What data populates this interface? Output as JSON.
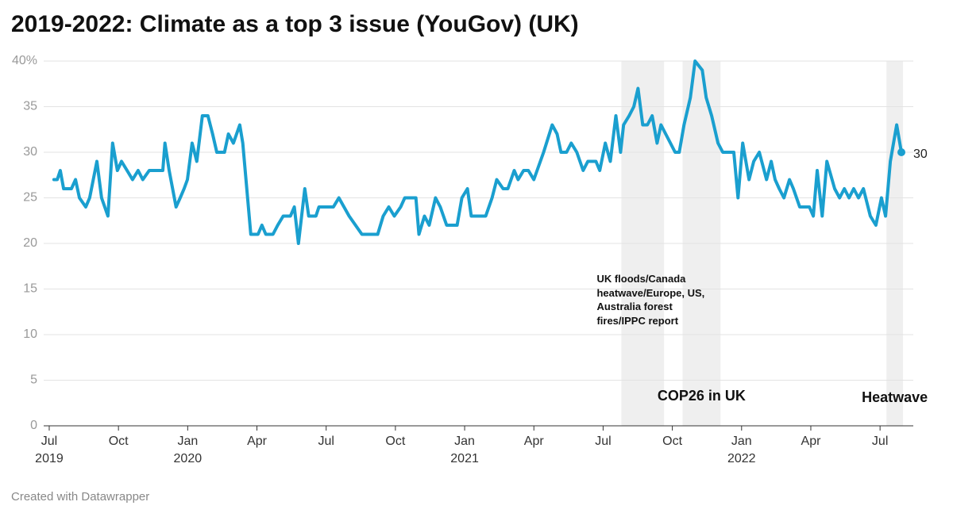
{
  "chart_data": {
    "type": "line",
    "title": "2019-2022: Climate as a top 3 issue (YouGov) (UK)",
    "footer": "Created with Datawrapper",
    "xlim": [
      2019.48,
      2022.62
    ],
    "xticks": [
      {
        "value": 2019.5,
        "label": "Jul"
      },
      {
        "value": 2019.75,
        "label": "Oct"
      },
      {
        "value": 2020.0,
        "label": "Jan"
      },
      {
        "value": 2020.25,
        "label": "Apr"
      },
      {
        "value": 2020.5,
        "label": "Jul"
      },
      {
        "value": 2020.75,
        "label": "Oct"
      },
      {
        "value": 2021.0,
        "label": "Jan"
      },
      {
        "value": 2021.25,
        "label": "Apr"
      },
      {
        "value": 2021.5,
        "label": "Jul"
      },
      {
        "value": 2021.75,
        "label": "Oct"
      },
      {
        "value": 2022.0,
        "label": "Jan"
      },
      {
        "value": 2022.25,
        "label": "Apr"
      },
      {
        "value": 2022.5,
        "label": "Jul"
      }
    ],
    "year_ticks": [
      {
        "value": 2019.5,
        "label": "2019"
      },
      {
        "value": 2020.0,
        "label": "2020"
      },
      {
        "value": 2021.0,
        "label": "2021"
      },
      {
        "value": 2022.0,
        "label": "2022"
      }
    ],
    "ylim": [
      0,
      40
    ],
    "yticks": [
      0,
      5,
      10,
      15,
      20,
      25,
      30,
      35,
      {
        "value": 40,
        "label": "40%"
      }
    ],
    "grid": true,
    "highlights": [
      {
        "start": 2021.566,
        "end": 2021.72,
        "label": "UK floods/Canada heatwave/Europe, US, Australia forest fires/IPPC report"
      },
      {
        "start": 2021.787,
        "end": 2021.924,
        "label": "COP26 in UK"
      },
      {
        "start": 2022.523,
        "end": 2022.583,
        "label": "Heatwave"
      }
    ],
    "x": [
      2019.517,
      2019.529,
      2019.54,
      2019.552,
      2019.58,
      2019.595,
      2019.609,
      2019.632,
      2019.646,
      2019.672,
      2019.689,
      2019.712,
      2019.729,
      2019.746,
      2019.761,
      2019.781,
      2019.801,
      2019.821,
      2019.838,
      2019.861,
      2019.91,
      2019.918,
      2019.933,
      2019.958,
      2019.973,
      2019.987,
      2019.999,
      2020.016,
      2020.033,
      2020.053,
      2020.073,
      2020.09,
      2020.105,
      2020.133,
      2020.147,
      2020.165,
      2020.188,
      2020.199,
      2020.228,
      2020.254,
      2020.268,
      2020.282,
      2020.308,
      2020.325,
      2020.345,
      2020.371,
      2020.385,
      2020.4,
      2020.423,
      2020.437,
      2020.463,
      2020.474,
      2020.526,
      2020.546,
      2020.583,
      2020.629,
      2020.686,
      2020.706,
      2020.726,
      2020.746,
      2020.769,
      2020.784,
      2020.824,
      2020.835,
      2020.855,
      2020.872,
      2020.895,
      2020.912,
      2020.935,
      2020.973,
      2020.99,
      2021.01,
      2021.024,
      2021.076,
      2021.099,
      2021.116,
      2021.139,
      2021.156,
      2021.179,
      2021.193,
      2021.213,
      2021.23,
      2021.25,
      2021.285,
      2021.316,
      2021.334,
      2021.348,
      2021.368,
      2021.385,
      2021.405,
      2021.428,
      2021.445,
      2021.474,
      2021.488,
      2021.508,
      2021.526,
      2021.546,
      2021.563,
      2021.574,
      2021.594,
      2021.611,
      2021.626,
      2021.643,
      2021.66,
      2021.677,
      2021.695,
      2021.709,
      2021.743,
      2021.76,
      2021.775,
      2021.792,
      2021.815,
      2021.832,
      2021.858,
      2021.872,
      2021.892,
      2021.915,
      2021.932,
      2021.958,
      2021.972,
      2021.987,
      2022.004,
      2022.027,
      2022.044,
      2022.064,
      2022.09,
      2022.107,
      2022.121,
      2022.136,
      2022.153,
      2022.173,
      2022.187,
      2022.21,
      2022.23,
      2022.245,
      2022.259,
      2022.273,
      2022.291,
      2022.308,
      2022.336,
      2022.354,
      2022.371,
      2022.388,
      2022.405,
      2022.422,
      2022.44,
      2022.465,
      2022.485,
      2022.505,
      2022.52,
      2022.537,
      2022.56,
      2022.577
    ],
    "series": [
      {
        "color": "#1a9fcf",
        "values": [
          27,
          27,
          28,
          26,
          26,
          27,
          25,
          24,
          25,
          29,
          25,
          23,
          31,
          28,
          29,
          28,
          27,
          28,
          27,
          28,
          28,
          31,
          28,
          24,
          25,
          26,
          27,
          31,
          29,
          34,
          34,
          32,
          30,
          30,
          32,
          31,
          33,
          31,
          21,
          21,
          22,
          21,
          21,
          22,
          23,
          23,
          24,
          20,
          26,
          23,
          23,
          24,
          24,
          25,
          23,
          21,
          21,
          23,
          24,
          23,
          24,
          25,
          25,
          21,
          23,
          22,
          25,
          24,
          22,
          22,
          25,
          26,
          23,
          23,
          25,
          27,
          26,
          26,
          28,
          27,
          28,
          28,
          27,
          30,
          33,
          32,
          30,
          30,
          31,
          30,
          28,
          29,
          29,
          28,
          31,
          29,
          34,
          30,
          33,
          34,
          35,
          37,
          33,
          33,
          34,
          31,
          33,
          31,
          30,
          30,
          33,
          36,
          40,
          39,
          36,
          34,
          31,
          30,
          30,
          30,
          25,
          31,
          27,
          29,
          30,
          27,
          29,
          27,
          26,
          25,
          27,
          26,
          24,
          24,
          24,
          23,
          28,
          23,
          29,
          26,
          25,
          26,
          25,
          26,
          25,
          26,
          23,
          22,
          25,
          23,
          29,
          33,
          30
        ]
      }
    ]
  }
}
